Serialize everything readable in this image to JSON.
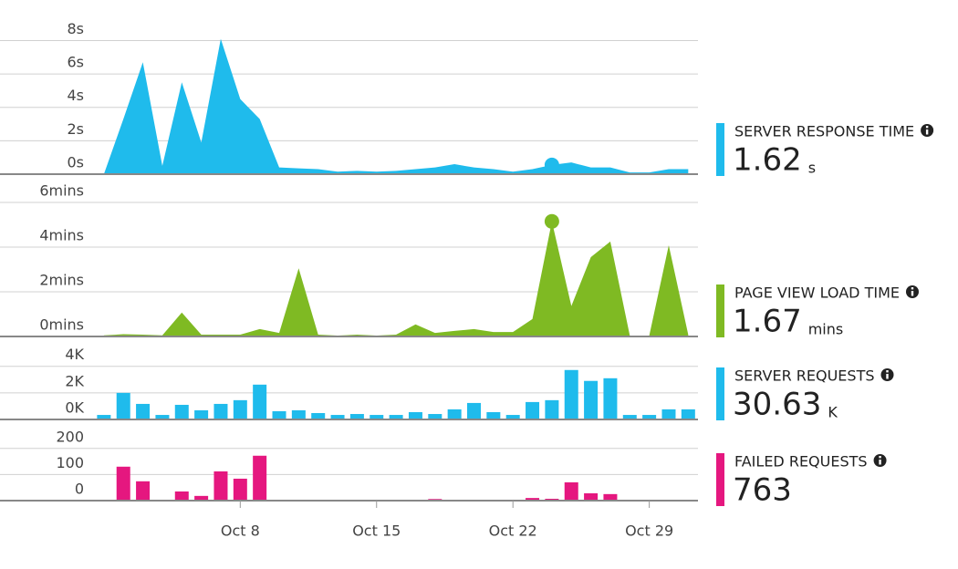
{
  "chart_data": [
    {
      "type": "area",
      "title": "SERVER RESPONSE TIME",
      "summary_value": 1.62,
      "summary_unit": "s",
      "color": "#1fbbec",
      "x": [
        1,
        2,
        3,
        4,
        5,
        6,
        7,
        8,
        9,
        10,
        11,
        12,
        13,
        14,
        15,
        16,
        17,
        18,
        19,
        20,
        21,
        22,
        23,
        24,
        25,
        26,
        27,
        28,
        29,
        30,
        31
      ],
      "values": [
        0,
        3.3,
        6.7,
        0.5,
        5.5,
        1.9,
        8.1,
        4.5,
        3.3,
        0.4,
        0.35,
        0.3,
        0.15,
        0.2,
        0.15,
        0.2,
        0.3,
        0.4,
        0.6,
        0.4,
        0.3,
        0.15,
        0.3,
        0.55,
        0.7,
        0.4,
        0.4,
        0.1,
        0.1,
        0.3,
        0.3
      ],
      "marker_x": 24,
      "xlim": [
        0.35,
        31.5
      ],
      "ylim": [
        0,
        9.5
      ],
      "yticks": [
        {
          "value": 0,
          "label": "0s"
        },
        {
          "value": 2,
          "label": "2s"
        },
        {
          "value": 4,
          "label": "4s"
        },
        {
          "value": 6,
          "label": "6s"
        },
        {
          "value": 8,
          "label": "8s"
        }
      ],
      "grid": true
    },
    {
      "type": "area",
      "title": "PAGE VIEW LOAD TIME",
      "summary_value": 1.67,
      "summary_unit": "mins",
      "color": "#7fba23",
      "x": [
        1,
        2,
        3,
        4,
        5,
        6,
        7,
        8,
        9,
        10,
        11,
        12,
        13,
        14,
        15,
        16,
        17,
        18,
        19,
        20,
        21,
        22,
        23,
        24,
        25,
        26,
        27,
        28,
        29,
        30,
        31
      ],
      "values": [
        0.05,
        0.1,
        0.08,
        0.05,
        1.07,
        0.08,
        0.08,
        0.08,
        0.33,
        0.16,
        3.05,
        0.08,
        0.04,
        0.08,
        0.04,
        0.08,
        0.54,
        0.16,
        0.25,
        0.33,
        0.2,
        0.2,
        0.78,
        5.15,
        1.36,
        3.55,
        4.25,
        0.04,
        0.04,
        4.08,
        0.08
      ],
      "marker_x": 24,
      "xlim": [
        0.35,
        31.5
      ],
      "ylim": [
        0,
        7.1
      ],
      "yticks": [
        {
          "value": 0,
          "label": "0mins"
        },
        {
          "value": 2,
          "label": "2mins"
        },
        {
          "value": 4,
          "label": "4mins"
        },
        {
          "value": 6,
          "label": "6mins"
        }
      ],
      "grid": true
    },
    {
      "type": "bar",
      "title": "SERVER REQUESTS",
      "summary_value": 30.63,
      "summary_unit": "K",
      "color": "#1fbbec",
      "x": [
        1,
        2,
        3,
        4,
        5,
        6,
        7,
        8,
        9,
        10,
        11,
        12,
        13,
        14,
        15,
        16,
        17,
        18,
        19,
        20,
        21,
        22,
        23,
        24,
        25,
        26,
        27,
        28,
        29,
        30,
        31
      ],
      "values": [
        0.34,
        2.0,
        1.17,
        0.34,
        1.1,
        0.69,
        1.17,
        1.45,
        2.62,
        0.62,
        0.69,
        0.48,
        0.34,
        0.41,
        0.34,
        0.34,
        0.55,
        0.41,
        0.76,
        1.24,
        0.55,
        0.34,
        1.31,
        1.45,
        3.72,
        2.9,
        3.1,
        0.34,
        0.34,
        0.76,
        0.76
      ],
      "xlim": [
        0.35,
        31.5
      ],
      "ylim": [
        0,
        5.9
      ],
      "yticks": [
        {
          "value": 0,
          "label": "0K"
        },
        {
          "value": 2,
          "label": "2K"
        },
        {
          "value": 4,
          "label": "4K"
        }
      ],
      "grid": true
    },
    {
      "type": "bar",
      "title": "FAILED REQUESTS",
      "summary_value": 763,
      "color": "#e5177f",
      "x": [
        1,
        2,
        3,
        4,
        5,
        6,
        7,
        8,
        9,
        10,
        11,
        12,
        13,
        14,
        15,
        16,
        17,
        18,
        19,
        20,
        21,
        22,
        23,
        24,
        25,
        26,
        27,
        28,
        29,
        30,
        31
      ],
      "values": [
        0,
        130,
        74,
        0,
        35,
        18,
        112,
        84,
        172,
        3,
        3,
        2,
        0,
        0,
        0,
        0,
        2,
        6,
        1,
        0,
        0,
        0,
        10,
        7,
        70,
        28,
        25,
        0,
        0,
        0,
        1
      ],
      "xlim": [
        0.35,
        31.5
      ],
      "ylim": [
        0,
        290
      ],
      "yticks": [
        0,
        100,
        200
      ],
      "xticks": [
        {
          "value": 8,
          "label": "Oct 8"
        },
        {
          "value": 15,
          "label": "Oct 15"
        },
        {
          "value": 22,
          "label": "Oct 22"
        },
        {
          "value": 29,
          "label": "Oct 29"
        }
      ],
      "grid": true
    }
  ]
}
